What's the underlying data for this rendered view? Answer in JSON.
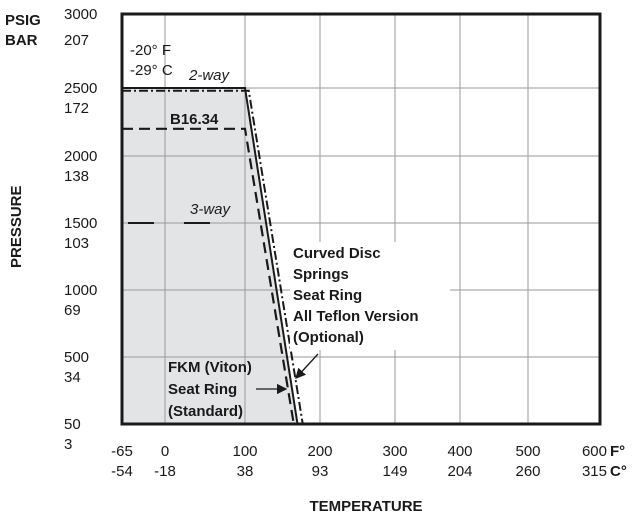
{
  "chart_data": {
    "type": "area",
    "y_unit_labels": [
      "PSIG",
      "BAR"
    ],
    "x_unit_labels": [
      "F°",
      "C°"
    ],
    "ylabel": "PRESSURE",
    "xlabel": "TEMPERATURE",
    "y_ticks": [
      {
        "psig": "3000",
        "bar": "207"
      },
      {
        "psig": "2500",
        "bar": "172"
      },
      {
        "psig": "2000",
        "bar": "138"
      },
      {
        "psig": "1500",
        "bar": "103"
      },
      {
        "psig": "1000",
        "bar": "69"
      },
      {
        "psig": "500",
        "bar": "34"
      },
      {
        "psig": "50",
        "bar": "3"
      }
    ],
    "x_ticks": [
      {
        "f": "-65",
        "c": "-54"
      },
      {
        "f": "0",
        "c": "-18"
      },
      {
        "f": "100",
        "c": "38"
      },
      {
        "f": "200",
        "c": "93"
      },
      {
        "f": "300",
        "c": "149"
      },
      {
        "f": "400",
        "c": "204"
      },
      {
        "f": "500",
        "c": "260"
      },
      {
        "f": "600",
        "c": "315"
      }
    ],
    "x_tick_values": [
      -65,
      0,
      100,
      200,
      300,
      400,
      500,
      600
    ],
    "y_tick_values": [
      3000,
      2500,
      2000,
      1500,
      1000,
      500,
      50
    ],
    "series": [
      {
        "name": "FKM (Viton) Seat Ring (Standard)",
        "style": "solid",
        "x": [
          -65,
          100,
          170
        ],
        "y": [
          2500,
          2500,
          50
        ]
      },
      {
        "name": "Curved Disc Springs Seat Ring All Teflon Version (Optional)",
        "style": "dash-dot",
        "x": [
          -65,
          105,
          177
        ],
        "y": [
          2480,
          2480,
          50
        ]
      },
      {
        "name": "B16.34",
        "style": "dashed",
        "x": [
          -65,
          100,
          165
        ],
        "y": [
          2200,
          2200,
          50
        ]
      },
      {
        "name": "3-way",
        "style": "dashed-segment",
        "x": [
          -56,
          78
        ],
        "y": [
          1500,
          1500
        ]
      }
    ],
    "annotations": {
      "min_temp_f": "-20° F",
      "min_temp_c": "-29° C",
      "two_way": "2-way",
      "b1634": "B16.34",
      "three_way": "3-way",
      "optional_lines": [
        "Curved Disc",
        "Springs",
        "Seat Ring",
        "All Teflon Version",
        "(Optional)"
      ],
      "standard_lines": [
        "FKM (Viton)",
        "Seat Ring",
        "(Standard)"
      ]
    },
    "colors": {
      "fill": "#e2e4e6",
      "grid": "#9a9a9a",
      "line": "#1a1a1a"
    }
  }
}
